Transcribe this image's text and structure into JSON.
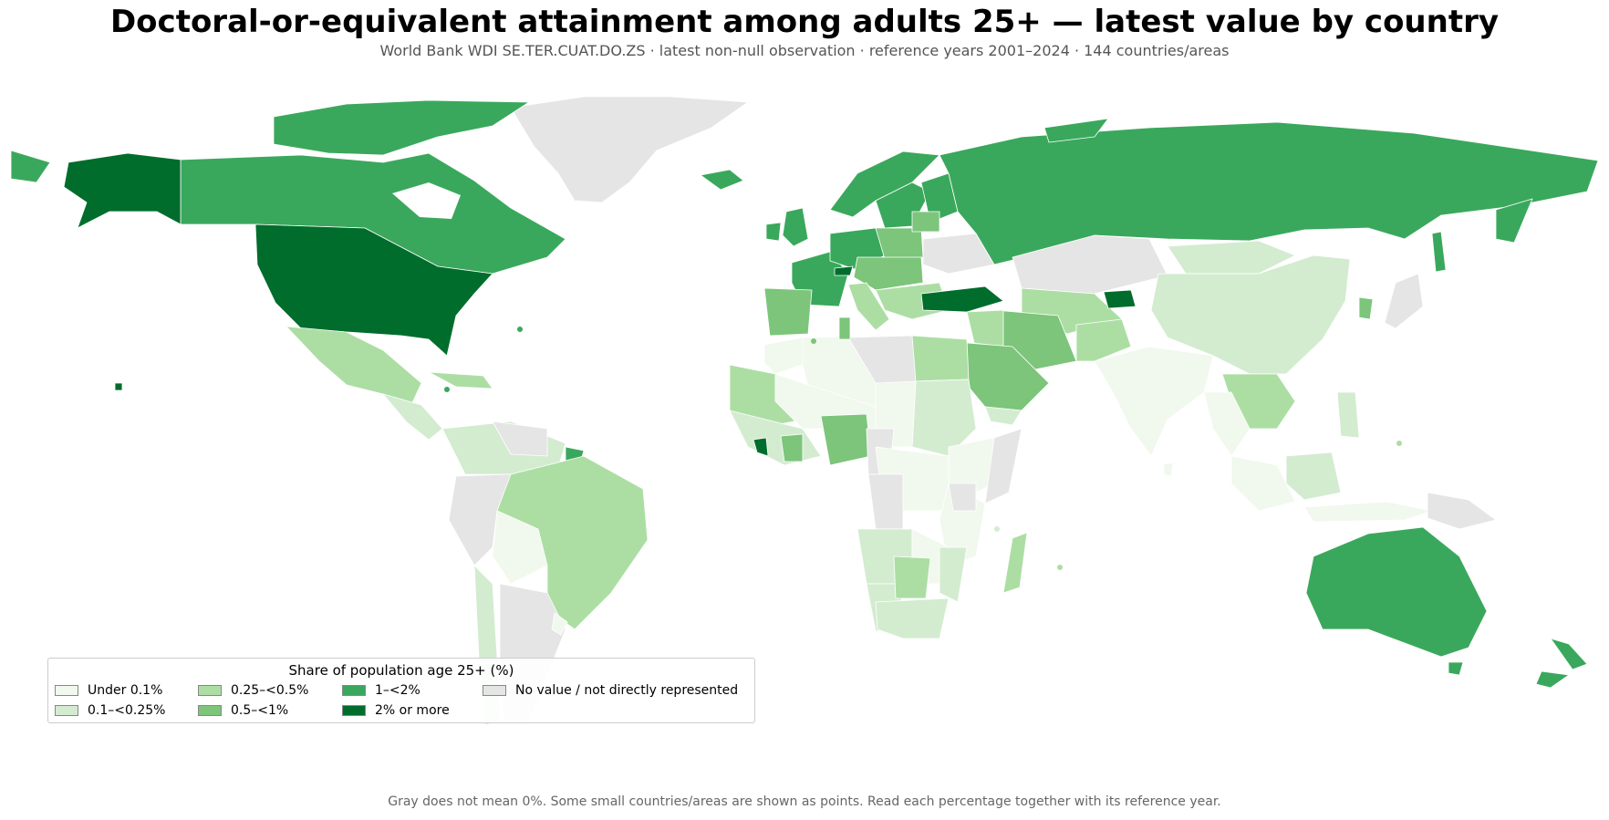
{
  "title": "Doctoral-or-equivalent attainment among adults 25+ — latest value by country",
  "subtitle": "World Bank WDI SE.TER.CUAT.DO.ZS · latest non-null observation · reference years 2001–2024 · 144 countries/areas",
  "footer": "Gray does not mean 0%. Some small countries/areas are shown as points. Read each percentage together with its reference year.",
  "legend": {
    "title": "Share of population age 25+ (%)",
    "items": [
      {
        "label": "Under 0.1%",
        "color": "#f1f8ed"
      },
      {
        "label": "0.1–<0.25%",
        "color": "#d3ecd0"
      },
      {
        "label": "0.25–<0.5%",
        "color": "#acdea4"
      },
      {
        "label": "0.5–<1%",
        "color": "#7cc57b"
      },
      {
        "label": "1–<2%",
        "color": "#3aa85c"
      },
      {
        "label": "2% or more",
        "color": "#006d2c"
      },
      {
        "label": "No value / not directly represented",
        "color": "#e5e5e5"
      }
    ]
  },
  "map_data": {
    "type": "choropleth",
    "classes": [
      "Under 0.1%",
      "0.1–<0.25%",
      "0.25–<0.5%",
      "0.5–<1%",
      "1–<2%",
      "2% or more",
      "No value / not directly represented"
    ]
  }
}
